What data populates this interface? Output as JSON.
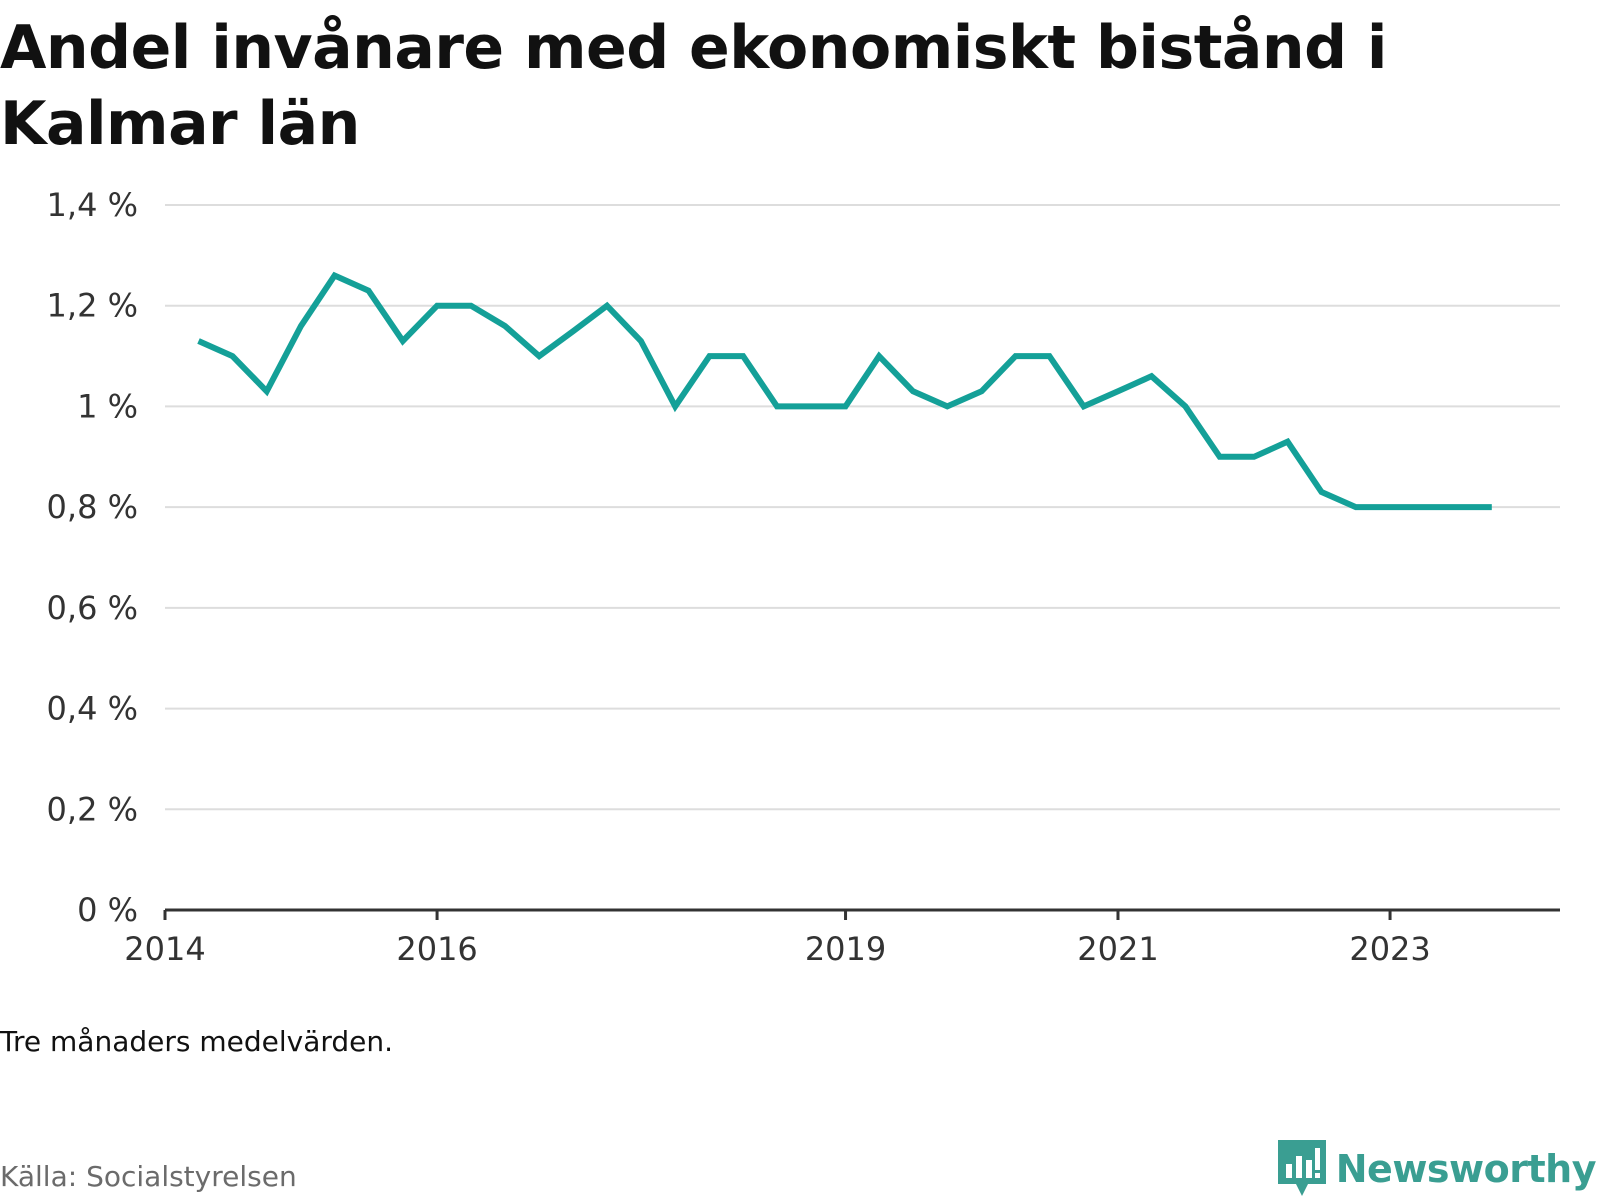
{
  "title": "Andel invånare med ekonomiskt bistånd i Kalmar län",
  "note": "Tre månaders medelvärden.",
  "source": "Källa: Socialstyrelsen",
  "brand": {
    "name": "Newsworthy",
    "logo_icon": "newsworthy-chart-icon",
    "color": "#3a9e92"
  },
  "colors": {
    "line": "#14a098",
    "grid": "#dddddd",
    "axis": "#333333"
  },
  "chart_data": {
    "type": "line",
    "title": "Andel invånare med ekonomiskt bistånd i Kalmar län",
    "xlabel": "",
    "ylabel": "",
    "ylim": [
      0,
      1.4
    ],
    "xlim": [
      "2014-01-01",
      "2024-04-01"
    ],
    "yticks": [
      {
        "value": 0,
        "label": "0 %"
      },
      {
        "value": 0.2,
        "label": "0,2 %"
      },
      {
        "value": 0.4,
        "label": "0,4 %"
      },
      {
        "value": 0.6,
        "label": "0,6 %"
      },
      {
        "value": 0.8,
        "label": "0,8 %"
      },
      {
        "value": 1.0,
        "label": "1 %"
      },
      {
        "value": 1.2,
        "label": "1,2 %"
      },
      {
        "value": 1.4,
        "label": "1,4 %"
      }
    ],
    "xticks": [
      {
        "value": "2014-01-01",
        "label": "2014"
      },
      {
        "value": "2016-01-01",
        "label": "2016"
      },
      {
        "value": "2019-01-01",
        "label": "2019"
      },
      {
        "value": "2021-01-01",
        "label": "2021"
      },
      {
        "value": "2023-01-01",
        "label": "2023"
      }
    ],
    "grid": true,
    "legend": "none",
    "series": [
      {
        "x": [
          "2014-04-01",
          "2014-07-01",
          "2014-10-01",
          "2015-01-01",
          "2015-04-01",
          "2015-07-01",
          "2015-10-01",
          "2016-01-01",
          "2016-04-01",
          "2016-07-01",
          "2016-10-01",
          "2017-01-01",
          "2017-04-01",
          "2017-07-01",
          "2017-10-01",
          "2018-01-01",
          "2018-04-01",
          "2018-07-01",
          "2018-10-01",
          "2019-01-01",
          "2019-04-01",
          "2019-07-01",
          "2019-10-01",
          "2020-01-01",
          "2020-04-01",
          "2020-07-01",
          "2020-10-01",
          "2021-01-01",
          "2021-04-01",
          "2021-07-01",
          "2021-10-01",
          "2022-01-01",
          "2022-04-01",
          "2022-07-01",
          "2022-10-01",
          "2023-01-01",
          "2023-04-01",
          "2023-07-01",
          "2023-10-01"
        ],
        "values": [
          1.13,
          1.1,
          1.03,
          1.16,
          1.26,
          1.23,
          1.13,
          1.2,
          1.2,
          1.16,
          1.1,
          1.15,
          1.2,
          1.13,
          1.0,
          1.1,
          1.1,
          1.0,
          1.0,
          1.0,
          1.1,
          1.03,
          1.0,
          1.03,
          1.1,
          1.1,
          1.0,
          1.03,
          1.06,
          1.0,
          0.9,
          0.9,
          0.93,
          0.83,
          0.8,
          0.8,
          0.8,
          0.8,
          0.8
        ]
      }
    ]
  }
}
